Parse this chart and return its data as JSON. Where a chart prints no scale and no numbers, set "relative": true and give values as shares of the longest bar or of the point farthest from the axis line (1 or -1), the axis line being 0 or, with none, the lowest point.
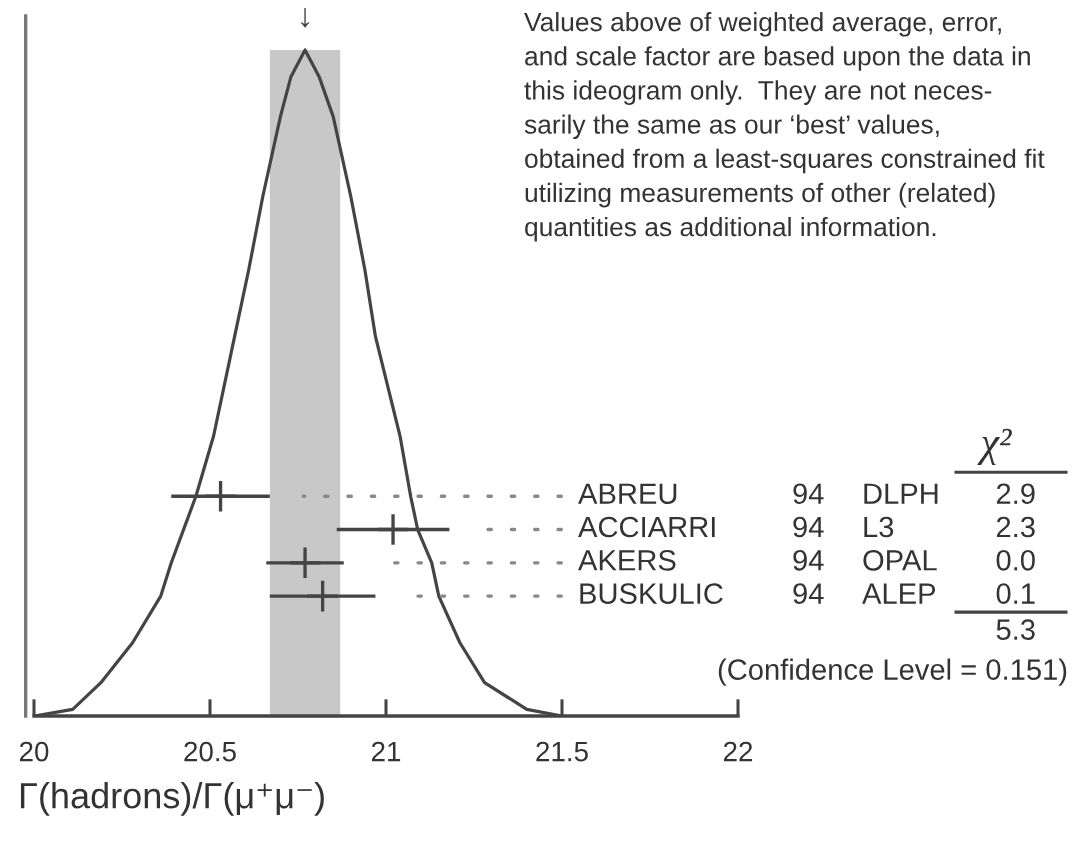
{
  "chart_data": {
    "type": "line",
    "relative": true,
    "xlabel": "Γ(hadrons)/Γ(μ⁺μ⁻)",
    "xlim": [
      20,
      22
    ],
    "xticks": [
      20,
      20.5,
      21,
      21.5,
      22
    ],
    "series": [
      {
        "type": "line",
        "color": "#444444",
        "x": [
          20.0,
          20.11,
          20.19,
          20.28,
          20.36,
          20.39,
          20.46,
          20.51,
          20.57,
          20.61,
          20.65,
          20.7,
          20.73,
          20.77,
          20.81,
          20.85,
          20.9,
          20.94,
          20.97,
          21.04,
          21.07,
          21.09,
          21.13,
          21.15,
          21.21,
          21.28,
          21.4,
          21.5
        ],
        "values": [
          0.0,
          0.01,
          0.05,
          0.11,
          0.18,
          0.23,
          0.33,
          0.42,
          0.57,
          0.67,
          0.78,
          0.9,
          0.96,
          1.0,
          0.96,
          0.9,
          0.78,
          0.67,
          0.57,
          0.42,
          0.33,
          0.28,
          0.23,
          0.18,
          0.11,
          0.05,
          0.01,
          0.0
        ]
      },
      {
        "type": "scatter",
        "color": "#444444",
        "marker": "cross",
        "x": [
          20.53,
          21.02,
          20.77,
          20.82
        ],
        "values": [
          0.33,
          0.28,
          0.23,
          0.18
        ],
        "xerrors": [
          0.14,
          0.16,
          0.11,
          0.15
        ]
      }
    ],
    "bands": [
      {
        "axis": "x",
        "from": 20.67,
        "to": 20.87,
        "color": "#c8c8c8"
      }
    ],
    "annotations": [
      {
        "text": "↓",
        "x": 20.77,
        "y": 1.0
      },
      "Values above of weighted average, error,\nand scale factor are based upon the data in\nthis ideogram only.  They are not neces-\nsarily the same as our ‘best’ values,\nobtained from a least-squares constrained fit\nutilizing measurements of other (related)\nquantities as additional information.",
      "χ²",
      "ABREU",
      "94",
      "DLPH",
      "2.9",
      "ACCIARRI",
      "94",
      "L3",
      "2.3",
      "AKERS",
      "94",
      "OPAL",
      "0.0",
      "BUSKULIC",
      "94",
      "ALEP",
      "0.1",
      "5.3",
      "(Confidence Level = 0.151)"
    ]
  }
}
